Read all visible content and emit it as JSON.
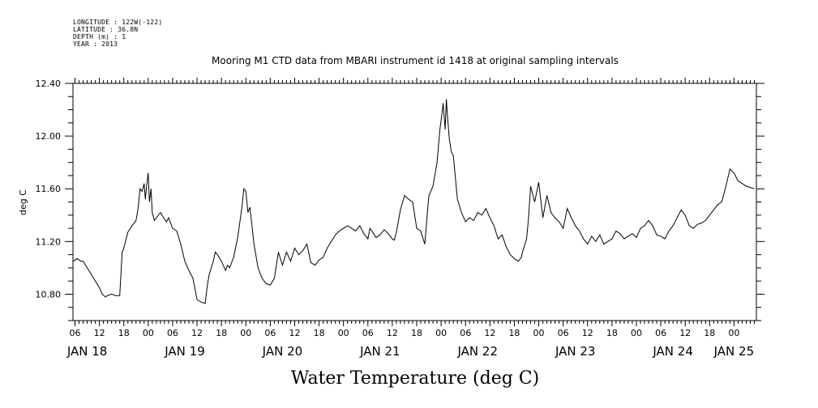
{
  "header": {
    "longitude": "LONGITUDE : 122W(-122)",
    "latitude": "LATITUDE : 36.8N",
    "depth": "DEPTH (m) : 1",
    "year": "YEAR : 2013"
  },
  "chart_data": {
    "type": "line",
    "title": "Mooring M1 CTD data from MBARI instrument id 1418 at original sampling intervals",
    "xlabel": "Water Temperature (deg C)",
    "ylabel": "deg C",
    "ylim": [
      10.6,
      12.4
    ],
    "yticks": [
      "10.80",
      "11.20",
      "11.60",
      "12.00",
      "12.40"
    ],
    "ytick_values": [
      10.8,
      11.2,
      11.6,
      12.0,
      12.4
    ],
    "x_unit": "hours since JAN 18 00",
    "xlim": [
      5.5,
      173.5
    ],
    "x_hour_ticks": [
      "06",
      "12",
      "18",
      "00",
      "06",
      "12",
      "18",
      "00",
      "06",
      "12",
      "18",
      "00",
      "06",
      "12",
      "18",
      "00",
      "06",
      "12",
      "18",
      "00",
      "06",
      "12",
      "18",
      "00",
      "06",
      "12",
      "18",
      "00"
    ],
    "x_hour_tick_values": [
      6,
      12,
      18,
      24,
      30,
      36,
      42,
      48,
      54,
      60,
      66,
      72,
      78,
      84,
      90,
      96,
      102,
      108,
      114,
      120,
      126,
      132,
      138,
      144,
      150,
      156,
      162,
      168
    ],
    "x_day_labels": [
      "JAN 18",
      "JAN 19",
      "JAN 20",
      "JAN 21",
      "JAN 22",
      "JAN 23",
      "JAN 24",
      "JAN 25"
    ],
    "x_day_label_values": [
      9,
      33,
      57,
      81,
      105,
      129,
      153,
      168
    ],
    "grid": false,
    "series": [
      {
        "x": [
          5.6,
          6.5,
          7.5,
          8,
          9,
          10,
          11,
          12,
          12.7,
          13.5,
          14,
          15,
          16,
          17,
          17.6,
          18,
          19,
          20,
          21,
          21.5,
          22,
          22.5,
          23,
          23.3,
          23.6,
          24,
          24.3,
          24.7,
          25,
          25.5,
          26,
          27,
          28,
          28.5,
          29,
          30,
          31,
          32,
          33,
          34,
          35,
          36,
          37,
          38,
          38.5,
          39,
          39.5,
          40,
          40.5,
          41,
          42,
          43,
          43.5,
          44,
          45,
          46,
          47,
          47.5,
          48,
          48.5,
          49,
          49.5,
          50,
          51,
          52,
          53,
          54,
          55,
          56,
          57,
          58,
          59,
          60,
          61,
          62,
          63,
          64,
          65,
          66,
          67,
          68,
          69,
          70,
          71,
          72,
          73,
          74,
          75,
          76,
          77,
          78,
          78.5,
          79,
          80,
          81,
          82,
          83,
          84,
          84.5,
          85,
          86,
          87,
          88,
          89,
          90,
          91,
          92,
          92.7,
          93,
          94,
          95,
          95.7,
          96,
          96.5,
          97,
          97.3,
          97.5,
          98,
          98.5,
          99,
          100,
          101,
          102,
          103,
          104,
          105,
          106,
          107,
          108,
          109,
          110,
          111,
          112,
          113,
          114,
          115,
          115.7,
          116,
          117,
          117.5,
          118,
          119,
          120,
          121,
          122,
          123,
          124,
          125,
          126,
          127,
          128,
          129,
          130,
          131,
          132,
          133,
          134,
          135,
          136,
          137,
          138,
          139,
          140,
          141,
          142,
          143,
          144,
          145,
          146,
          147,
          148,
          149,
          150,
          151,
          152,
          153,
          154,
          155,
          156,
          157,
          158,
          159,
          160,
          161,
          162,
          163,
          164,
          165,
          166,
          167,
          168,
          169,
          170,
          171,
          172,
          173
        ],
        "y": [
          11.05,
          11.07,
          11.05,
          11.05,
          11.0,
          10.95,
          10.9,
          10.85,
          10.8,
          10.78,
          10.79,
          10.8,
          10.79,
          10.79,
          11.12,
          11.15,
          11.27,
          11.32,
          11.36,
          11.45,
          11.6,
          11.58,
          11.64,
          11.52,
          11.62,
          11.72,
          11.5,
          11.6,
          11.42,
          11.36,
          11.38,
          11.42,
          11.37,
          11.35,
          11.38,
          11.3,
          11.28,
          11.18,
          11.05,
          10.98,
          10.92,
          10.76,
          10.74,
          10.73,
          10.86,
          10.95,
          11.0,
          11.05,
          11.12,
          11.1,
          11.05,
          10.98,
          11.02,
          11.0,
          11.08,
          11.23,
          11.45,
          11.6,
          11.58,
          11.42,
          11.46,
          11.32,
          11.18,
          11.0,
          10.92,
          10.88,
          10.87,
          10.92,
          11.12,
          11.02,
          11.12,
          11.05,
          11.15,
          11.1,
          11.13,
          11.18,
          11.04,
          11.02,
          11.06,
          11.08,
          11.15,
          11.2,
          11.25,
          11.28,
          11.3,
          11.32,
          11.3,
          11.28,
          11.32,
          11.26,
          11.22,
          11.3,
          11.28,
          11.23,
          11.25,
          11.29,
          11.26,
          11.22,
          11.21,
          11.27,
          11.44,
          11.55,
          11.52,
          11.5,
          11.3,
          11.28,
          11.18,
          11.45,
          11.55,
          11.62,
          11.8,
          12.05,
          12.12,
          12.25,
          12.05,
          12.28,
          12.18,
          11.98,
          11.88,
          11.85,
          11.52,
          11.42,
          11.35,
          11.38,
          11.36,
          11.42,
          11.4,
          11.45,
          11.38,
          11.32,
          11.22,
          11.25,
          11.16,
          11.1,
          11.07,
          11.05,
          11.08,
          11.12,
          11.22,
          11.38,
          11.62,
          11.5,
          11.65,
          11.38,
          11.55,
          11.42,
          11.38,
          11.35,
          11.3,
          11.45,
          11.38,
          11.32,
          11.28,
          11.22,
          11.18,
          11.24,
          11.2,
          11.25,
          11.18,
          11.2,
          11.22,
          11.28,
          11.26,
          11.22,
          11.24,
          11.26,
          11.23,
          11.3,
          11.32,
          11.36,
          11.32,
          11.25,
          11.24,
          11.22,
          11.28,
          11.32,
          11.38,
          11.44,
          11.4,
          11.32,
          11.3,
          11.33,
          11.34,
          11.36,
          11.4,
          11.44,
          11.48,
          11.5,
          11.62,
          11.75,
          11.72,
          11.66,
          11.64,
          11.62,
          11.61,
          11.6
        ]
      }
    ]
  }
}
